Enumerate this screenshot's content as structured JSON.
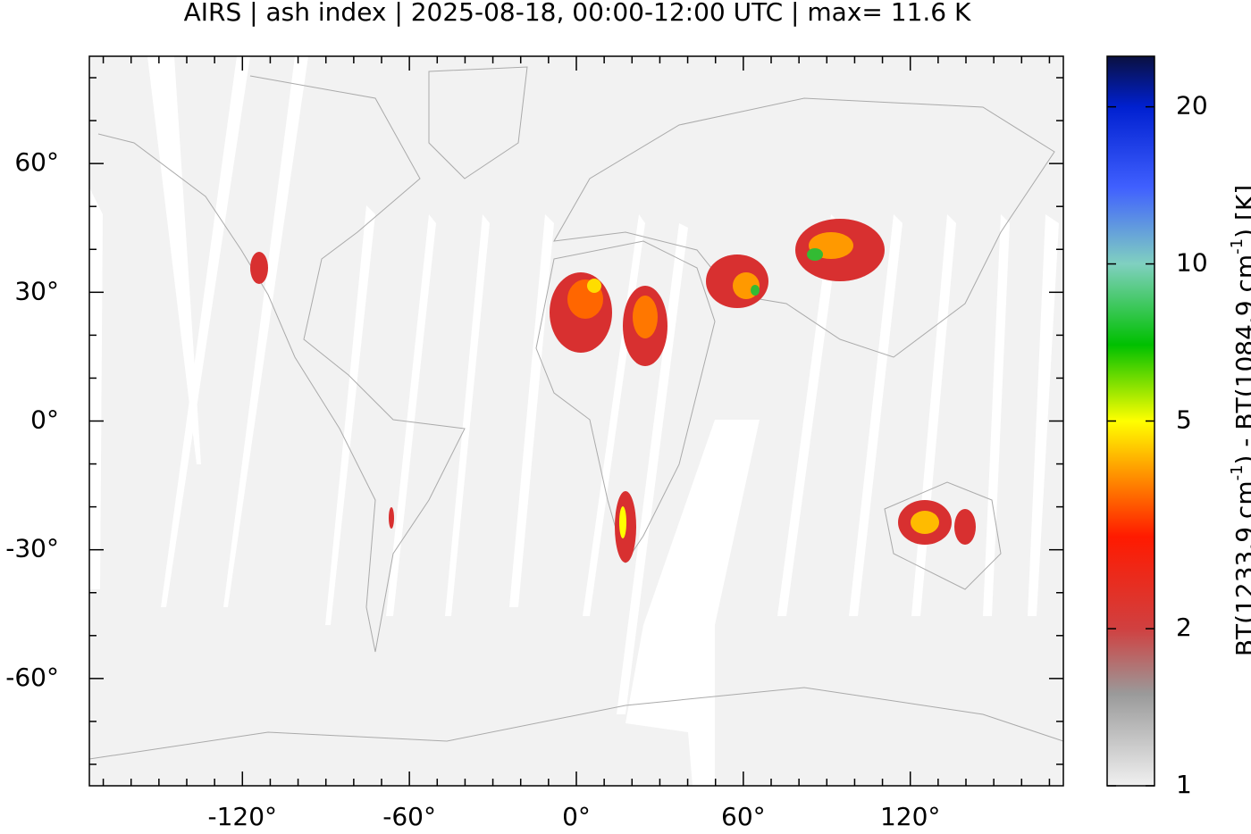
{
  "chart_data": {
    "type": "map",
    "title": "AIRS | ash index | 2025-08-18, 00:00-12:00 UTC | max= 11.6 K",
    "xlim": [
      -175,
      175
    ],
    "ylim": [
      -85,
      85
    ],
    "xticks": [
      {
        "value": -120,
        "label": "-120°"
      },
      {
        "value": -60,
        "label": "-60°"
      },
      {
        "value": 0,
        "label": "0°"
      },
      {
        "value": 60,
        "label": "60°"
      },
      {
        "value": 120,
        "label": "120°"
      }
    ],
    "yticks": [
      {
        "value": 60,
        "label": "60°"
      },
      {
        "value": 30,
        "label": "30°"
      },
      {
        "value": 0,
        "label": "0°"
      },
      {
        "value": -30,
        "label": "-30°"
      },
      {
        "value": -60,
        "label": "-60°"
      }
    ],
    "xminorticks": [
      -170,
      -160,
      -150,
      -140,
      -130,
      -110,
      -100,
      -90,
      -80,
      -70,
      -50,
      -40,
      -30,
      -20,
      -10,
      10,
      20,
      30,
      40,
      50,
      70,
      80,
      90,
      100,
      110,
      130,
      140,
      150,
      160,
      170
    ],
    "yminorticks": [
      -80,
      -70,
      -50,
      -40,
      -20,
      -10,
      10,
      20,
      40,
      50,
      70,
      80
    ],
    "colorbar": {
      "scale": "log",
      "lim": [
        1,
        25
      ],
      "ticks": [
        1,
        2,
        5,
        10,
        20
      ],
      "label": [
        "BT(1233.9 cm",
        "-1",
        ") - BT(1084.9 cm",
        "-1",
        ") [K]"
      ],
      "colormap": [
        {
          "value": 1,
          "color": "#f0f0f0"
        },
        {
          "value": 1.5,
          "color": "#9a9a9a"
        },
        {
          "value": 2,
          "color": "#d04040"
        },
        {
          "value": 3,
          "color": "#ff1a00"
        },
        {
          "value": 4,
          "color": "#ff9900"
        },
        {
          "value": 5,
          "color": "#ffff00"
        },
        {
          "value": 7,
          "color": "#00c000"
        },
        {
          "value": 10,
          "color": "#80d0c0"
        },
        {
          "value": 14,
          "color": "#4060ff"
        },
        {
          "value": 20,
          "color": "#0020d0"
        },
        {
          "value": 25,
          "color": "#0a1040"
        }
      ]
    }
  }
}
